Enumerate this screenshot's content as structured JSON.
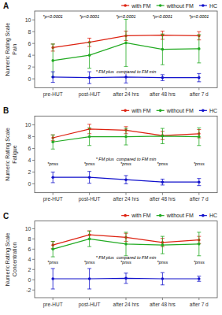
{
  "chart_data": [
    {
      "type": "line",
      "title": "A",
      "y_label": "Numeric Rating Scale\nPain",
      "categories": [
        "pre-HUT",
        "post-HUT",
        "after 24 hrs",
        "after 48 hrs",
        "after 7 d"
      ],
      "series": [
        {
          "name": "with FM",
          "color": "#dd2211",
          "values": [
            5.3,
            6.2,
            7.3,
            7.4,
            7.3
          ],
          "errors": [
            0.6,
            0.7,
            0.8,
            0.7,
            0.7
          ]
        },
        {
          "name": "without FM",
          "color": "#22aa22",
          "values": [
            3.1,
            4.0,
            6.1,
            5.0,
            5.1
          ],
          "errors": [
            2.8,
            2.2,
            4.0,
            2.6,
            2.4
          ]
        },
        {
          "name": "HC",
          "color": "#1111cc",
          "values": [
            0.3,
            0.2,
            0.3,
            0.2,
            0.2
          ],
          "errors": [
            0.9,
            1.0,
            1.0,
            0.5,
            0.7
          ]
        }
      ],
      "ylim": [
        -1.5,
        11.5
      ],
      "yticks": [
        0,
        2,
        4,
        6,
        8,
        10
      ],
      "annotations": [
        {
          "text": "*p<0.0001",
          "x": "pre-HUT",
          "y": 10.2
        },
        {
          "text": "*p<0.0001",
          "x": "post-HUT",
          "y": 10.2
        },
        {
          "text": "*p<0.0001",
          "x": "after 24 hrs",
          "y": 10.2
        },
        {
          "text": "*p<0.0001",
          "x": "after 48 hrs",
          "y": 10.2
        },
        {
          "text": "*p<0.0001",
          "x": "after 7 d",
          "y": 10.2
        },
        {
          "text": "* FM plus  compared to FM min",
          "x": "after 24 hrs",
          "y": 0.8
        }
      ],
      "legend": "top",
      "grid": false,
      "marker": "circle"
    },
    {
      "type": "line",
      "title": "B",
      "y_label": "Numeric Rating Scale\nFatigue",
      "categories": [
        "pre-HUT",
        "post-HUT",
        "after 24 hrs",
        "after 48 hrs",
        "after 7 d"
      ],
      "series": [
        {
          "name": "with FM",
          "color": "#dd2211",
          "values": [
            7.8,
            9.3,
            9.1,
            8.2,
            8.5
          ],
          "errors": [
            0.5,
            0.8,
            0.6,
            0.7,
            0.7
          ]
        },
        {
          "name": "without FM",
          "color": "#22aa22",
          "values": [
            7.1,
            8.0,
            8.0,
            8.1,
            8.0
          ],
          "errors": [
            1.2,
            1.5,
            1.4,
            1.3,
            1.5
          ]
        },
        {
          "name": "HC",
          "color": "#1111cc",
          "values": [
            1.1,
            1.1,
            0.7,
            0.3,
            0.3
          ],
          "errors": [
            0.9,
            1.0,
            0.7,
            0.5,
            0.6
          ]
        }
      ],
      "ylim": [
        -1.5,
        11.5
      ],
      "yticks": [
        0,
        2,
        4,
        6,
        8,
        10
      ],
      "annotations": [
        {
          "text": "*pnss",
          "x": "pre-HUT",
          "y": 3.0
        },
        {
          "text": "*pnss",
          "x": "post-HUT",
          "y": 3.0
        },
        {
          "text": "*pnss",
          "x": "after 24 hrs",
          "y": 3.0
        },
        {
          "text": "*pnss",
          "x": "after 48 hrs",
          "y": 3.0
        },
        {
          "text": "*pnss",
          "x": "after 7 d",
          "y": 3.0
        },
        {
          "text": "* FM plus  compared to FM min",
          "x": "after 24 hrs",
          "y": 3.8
        }
      ],
      "legend": "top",
      "grid": false,
      "marker": "circle"
    },
    {
      "type": "line",
      "title": "C",
      "y_label": "Numeric Rating Scale\nConcentration",
      "categories": [
        "pre-HUT",
        "post-HUT",
        "after 24 hrs",
        "after 48 hrs",
        "after 7 d"
      ],
      "series": [
        {
          "name": "with FM",
          "color": "#dd2211",
          "values": [
            6.8,
            8.8,
            8.3,
            7.3,
            7.8
          ],
          "errors": [
            0.7,
            0.8,
            0.8,
            0.8,
            0.7
          ]
        },
        {
          "name": "without FM",
          "color": "#22aa22",
          "values": [
            6.0,
            8.0,
            7.0,
            6.8,
            7.0
          ],
          "errors": [
            1.5,
            1.5,
            2.3,
            1.7,
            2.3
          ]
        },
        {
          "name": "HC",
          "color": "#1111cc",
          "values": [
            0.2,
            0.2,
            0.3,
            0.2,
            0.2
          ],
          "errors": [
            2.0,
            2.0,
            1.0,
            1.2,
            0.5
          ]
        }
      ],
      "ylim": [
        -3.5,
        11.5
      ],
      "yticks": [
        -2,
        0,
        2,
        4,
        6,
        8,
        10
      ],
      "annotations": [
        {
          "text": "*pnss",
          "x": "pre-HUT",
          "y": 3.0
        },
        {
          "text": "*pnss",
          "x": "post-HUT",
          "y": 3.0
        },
        {
          "text": "*pnss",
          "x": "after 24 hrs",
          "y": 3.0
        },
        {
          "text": "*pnss",
          "x": "after 48 hrs",
          "y": 3.0
        },
        {
          "text": "*pnss",
          "x": "after 7 d",
          "y": 3.0
        },
        {
          "text": "* FM plus  compared to FM min",
          "x": "after 24 hrs",
          "y": 3.8
        }
      ],
      "legend": "top",
      "grid": false,
      "marker": "circle"
    }
  ]
}
